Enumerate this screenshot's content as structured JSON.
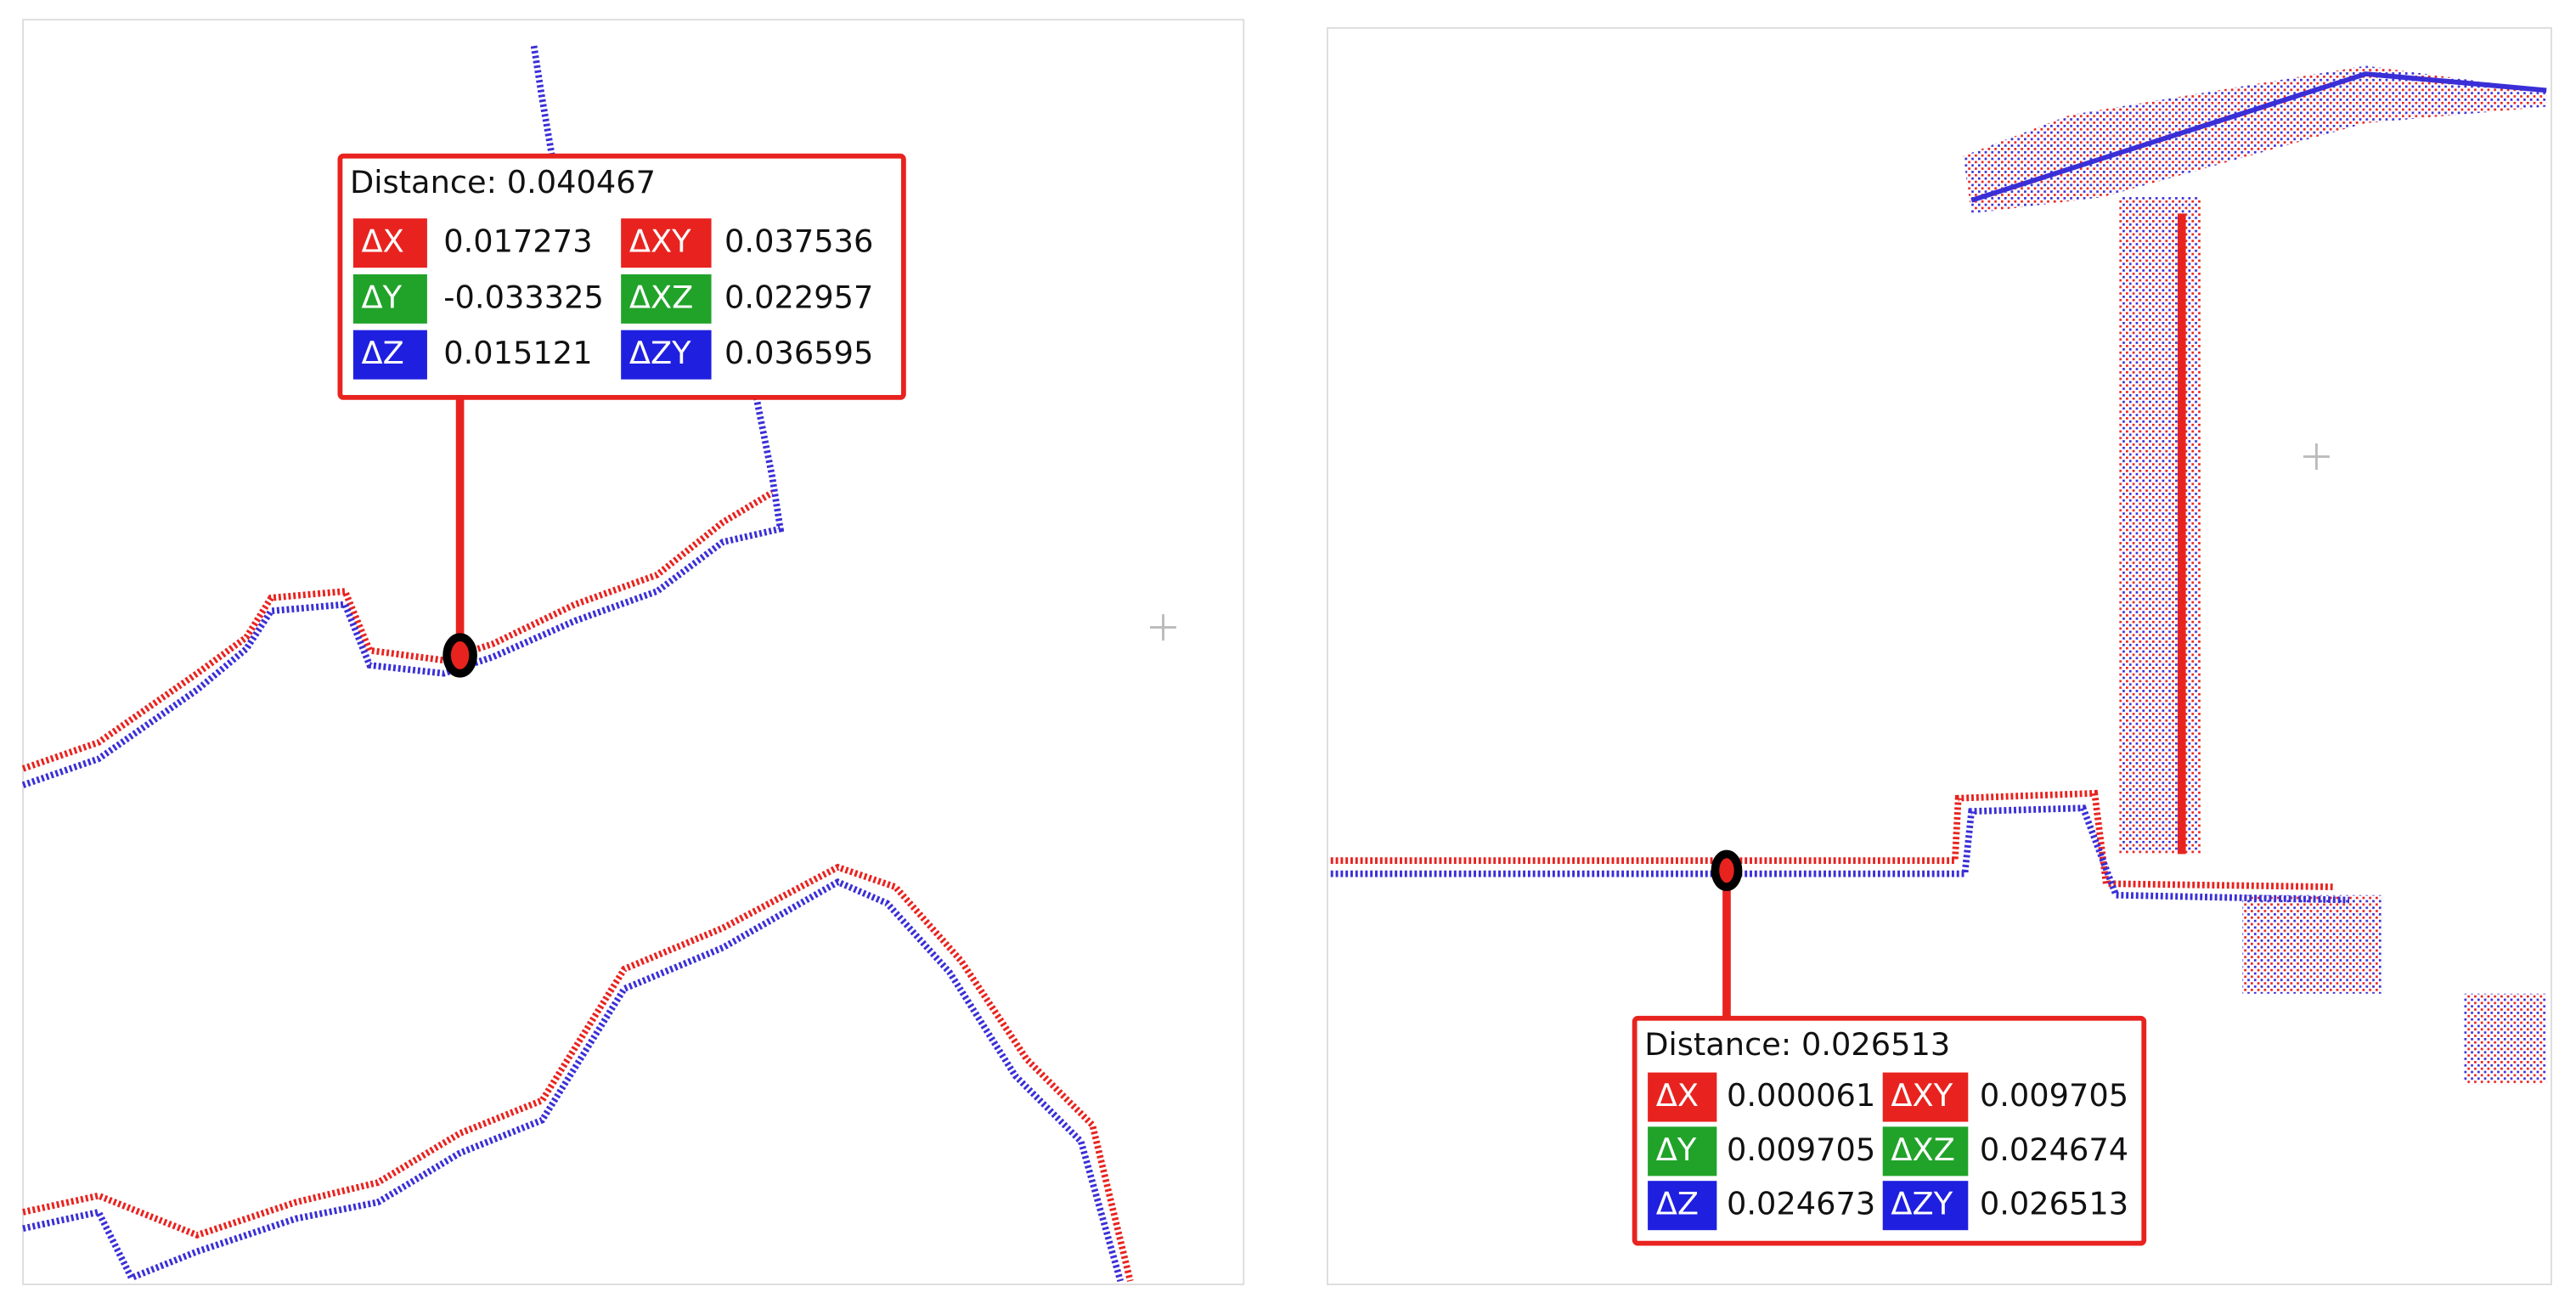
{
  "panels": [
    {
      "distance": "Distance: 0.040467",
      "rows": [
        [
          {
            "label": "ΔX",
            "value": "0.017273"
          },
          {
            "label": "ΔXY",
            "value": "0.037536"
          }
        ],
        [
          {
            "label": "ΔY",
            "value": "-0.033325"
          },
          {
            "label": "ΔXZ",
            "value": "0.022957"
          }
        ],
        [
          {
            "label": "ΔZ",
            "value": "0.015121"
          },
          {
            "label": "ΔZY",
            "value": "0.036595"
          }
        ]
      ]
    },
    {
      "distance": "Distance: 0.026513",
      "rows": [
        [
          {
            "label": "ΔX",
            "value": "0.000061"
          },
          {
            "label": "ΔXY",
            "value": "0.009705"
          }
        ],
        [
          {
            "label": "ΔY",
            "value": "0.009705"
          },
          {
            "label": "ΔXZ",
            "value": "0.024674"
          }
        ],
        [
          {
            "label": "ΔZ",
            "value": "0.024673"
          },
          {
            "label": "ΔZY",
            "value": "0.026513"
          }
        ]
      ]
    }
  ]
}
